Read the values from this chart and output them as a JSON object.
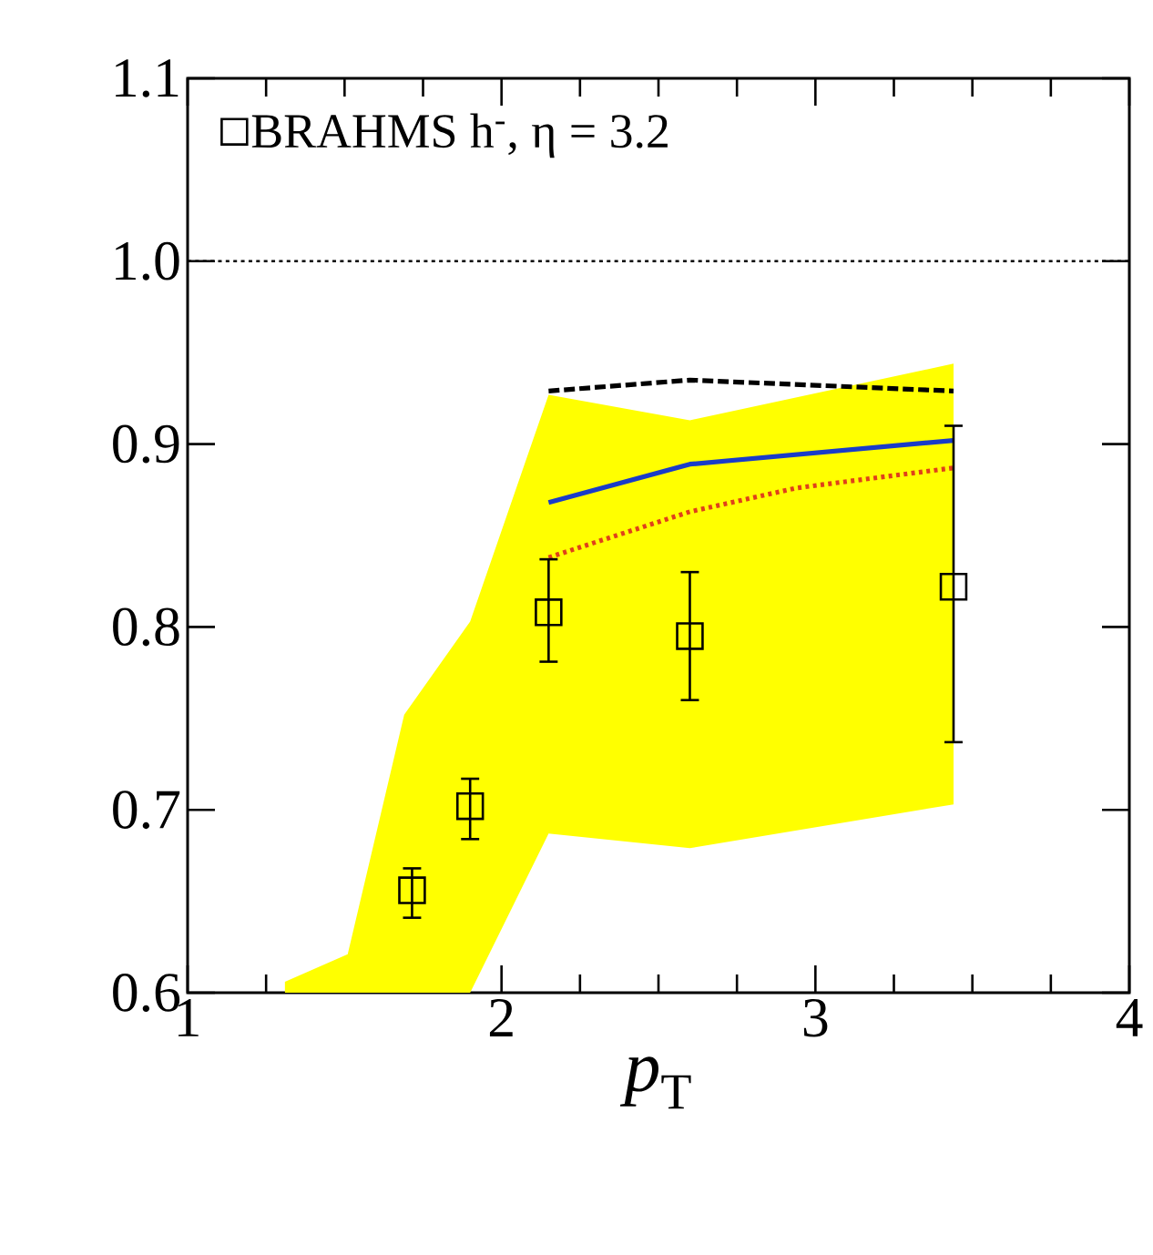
{
  "chart_data": {
    "type": "line",
    "xlabel": "*p*$_{T}$",
    "xlim": [
      1,
      4
    ],
    "ylim": [
      0.6,
      1.1
    ],
    "xticks": [
      1,
      2,
      3,
      4
    ],
    "yticks": [
      0.6,
      0.7,
      0.8,
      0.9,
      {
        "value": 1.0,
        "label": "1.0"
      },
      1.1
    ],
    "legend": "top left",
    "grid": false,
    "ref_lines": [
      {
        "axis": "y",
        "value": 1.0,
        "color": "#000000",
        "line_style": "dotted"
      }
    ],
    "series": [
      {
        "type": "area",
        "color": "#ffff00",
        "x": [
          1.31,
          1.51,
          1.69,
          1.9,
          2.15,
          2.6,
          3.44
        ],
        "values": [
          null,
          null,
          null,
          null,
          null,
          null,
          null
        ],
        "upper": [
          0.606,
          0.621,
          0.752,
          0.803,
          0.927,
          0.913,
          0.944
        ],
        "lower": [
          0.6,
          0.6,
          0.6,
          0.6,
          0.687,
          0.679,
          0.703
        ]
      },
      {
        "color": "#000000",
        "line_style": "dashed",
        "x": [
          2.15,
          2.6,
          3.44
        ],
        "values": [
          0.929,
          0.935,
          0.929
        ]
      },
      {
        "color": "#1a3cc8",
        "line_style": "solid",
        "x": [
          2.15,
          2.6,
          3.44
        ],
        "values": [
          0.868,
          0.889,
          0.902
        ]
      },
      {
        "color": "#e0401a",
        "line_style": "dotted",
        "x": [
          2.15,
          2.6,
          2.94,
          3.44
        ],
        "values": [
          0.838,
          0.863,
          0.876,
          0.887
        ]
      },
      {
        "type": "scatter",
        "name": "BRAHMS h$^{-}$, η = 3.2",
        "color": "#000000",
        "marker": "square",
        "x": [
          1.715,
          1.9,
          2.15,
          2.6,
          3.44
        ],
        "values": [
          0.656,
          0.702,
          0.808,
          0.795,
          0.822
        ],
        "errors": [
          [
            0.641,
            0.668
          ],
          [
            0.684,
            0.717
          ],
          [
            0.781,
            0.837
          ],
          [
            0.76,
            0.83
          ],
          [
            0.737,
            0.91
          ]
        ]
      }
    ]
  }
}
